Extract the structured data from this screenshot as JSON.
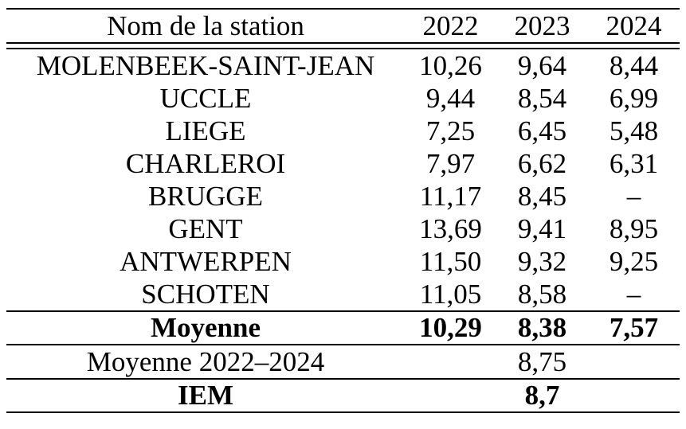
{
  "colors": {
    "text": "#000000",
    "background": "#ffffff",
    "rule": "#000000"
  },
  "table": {
    "header": {
      "station": "Nom de la station",
      "years": [
        "2022",
        "2023",
        "2024"
      ]
    },
    "rows": [
      {
        "name": "MOLENBEEK-SAINT-JEAN",
        "values": [
          "10,26",
          "9,64",
          "8,44"
        ]
      },
      {
        "name": "UCCLE",
        "values": [
          "9,44",
          "8,54",
          "6,99"
        ]
      },
      {
        "name": "LIEGE",
        "values": [
          "7,25",
          "6,45",
          "5,48"
        ]
      },
      {
        "name": "CHARLEROI",
        "values": [
          "7,97",
          "6,62",
          "6,31"
        ]
      },
      {
        "name": "BRUGGE",
        "values": [
          "11,17",
          "8,45",
          "–"
        ]
      },
      {
        "name": "GENT",
        "values": [
          "13,69",
          "9,41",
          "8,95"
        ]
      },
      {
        "name": "ANTWERPEN",
        "values": [
          "11,50",
          "9,32",
          "9,25"
        ]
      },
      {
        "name": "SCHOTEN",
        "values": [
          "11,05",
          "8,58",
          "–"
        ]
      }
    ],
    "summary": {
      "moyenne": {
        "label": "Moyenne",
        "values": [
          "10,29",
          "8,38",
          "7,57"
        ]
      },
      "moyenne_globale": {
        "label": "Moyenne 2022–2024",
        "value": "8,75"
      },
      "iem": {
        "label": "IEM",
        "value": "8,7"
      }
    }
  },
  "chart_data": {
    "type": "table",
    "title": "",
    "columns": [
      "Nom de la station",
      "2022",
      "2023",
      "2024"
    ],
    "rows": [
      [
        "MOLENBEEK-SAINT-JEAN",
        10.26,
        9.64,
        8.44
      ],
      [
        "UCCLE",
        9.44,
        8.54,
        6.99
      ],
      [
        "LIEGE",
        7.25,
        6.45,
        5.48
      ],
      [
        "CHARLEROI",
        7.97,
        6.62,
        6.31
      ],
      [
        "BRUGGE",
        11.17,
        8.45,
        null
      ],
      [
        "GENT",
        13.69,
        9.41,
        8.95
      ],
      [
        "ANTWERPEN",
        11.5,
        9.32,
        9.25
      ],
      [
        "SCHOTEN",
        11.05,
        8.58,
        null
      ],
      [
        "Moyenne",
        10.29,
        8.38,
        7.57
      ],
      [
        "Moyenne 2022–2024",
        null,
        8.75,
        null
      ],
      [
        "IEM",
        null,
        8.7,
        null
      ]
    ]
  }
}
